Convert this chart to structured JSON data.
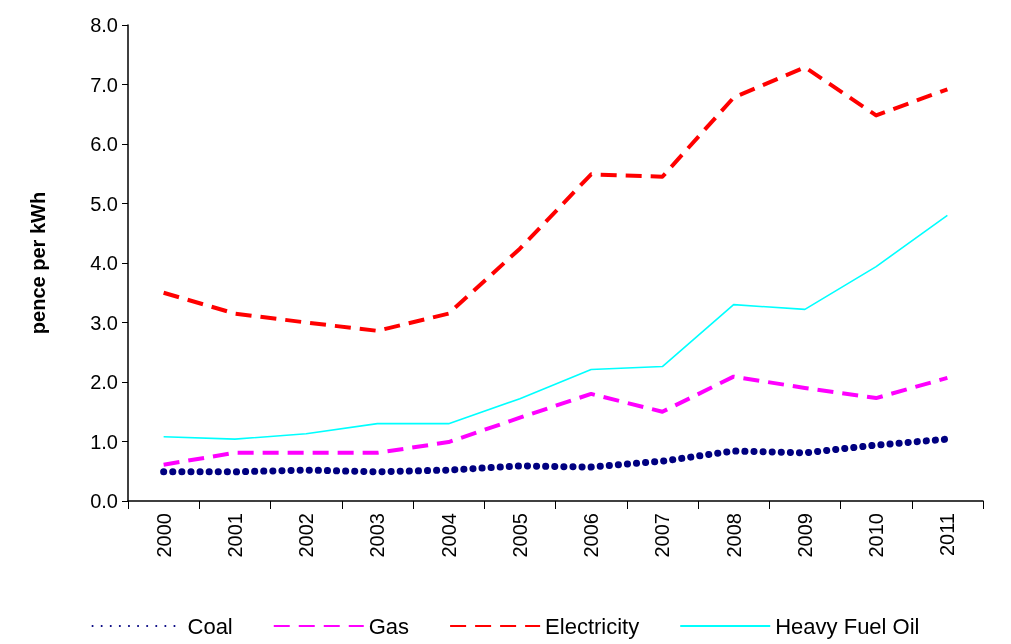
{
  "chart_data": {
    "type": "line",
    "ylabel": "pence per kWh",
    "categories": [
      "2000",
      "2001",
      "2002",
      "2003",
      "2004",
      "2005",
      "2006",
      "2007",
      "2008",
      "2009",
      "2010",
      "2011"
    ],
    "series": [
      {
        "name": "Coal",
        "color": "#000080",
        "line_style": "dotted",
        "values": [
          0.49,
          0.49,
          0.52,
          0.49,
          0.52,
          0.59,
          0.57,
          0.67,
          0.84,
          0.81,
          0.94,
          1.04
        ]
      },
      {
        "name": "Gas",
        "color": "#ff00ff",
        "line_style": "dashed",
        "values": [
          0.61,
          0.81,
          0.81,
          0.81,
          0.99,
          1.4,
          1.8,
          1.5,
          2.09,
          1.9,
          1.73,
          2.07
        ]
      },
      {
        "name": "Electricity",
        "color": "#ff0000",
        "line_style": "dashed",
        "values": [
          3.5,
          3.15,
          3.0,
          2.86,
          3.15,
          4.24,
          5.49,
          5.45,
          6.78,
          7.29,
          6.48,
          6.92
        ]
      },
      {
        "name": "Heavy Fuel Oil",
        "color": "#00ffff",
        "line_style": "solid",
        "values": [
          1.08,
          1.04,
          1.13,
          1.3,
          1.3,
          1.72,
          2.21,
          2.26,
          3.3,
          3.22,
          3.94,
          4.8
        ]
      }
    ],
    "ylim": [
      0,
      8
    ],
    "yticks": [
      {
        "value": 0,
        "label": "0.0"
      },
      {
        "value": 1,
        "label": "1.0"
      },
      {
        "value": 2,
        "label": "2.0"
      },
      {
        "value": 3,
        "label": "3.0"
      },
      {
        "value": 4,
        "label": "4.0"
      },
      {
        "value": 5,
        "label": "5.0"
      },
      {
        "value": 6,
        "label": "6.0"
      },
      {
        "value": 7,
        "label": "7.0"
      },
      {
        "value": 8,
        "label": "8.0"
      }
    ],
    "grid": false,
    "legend": "bottom",
    "marker": "none"
  }
}
